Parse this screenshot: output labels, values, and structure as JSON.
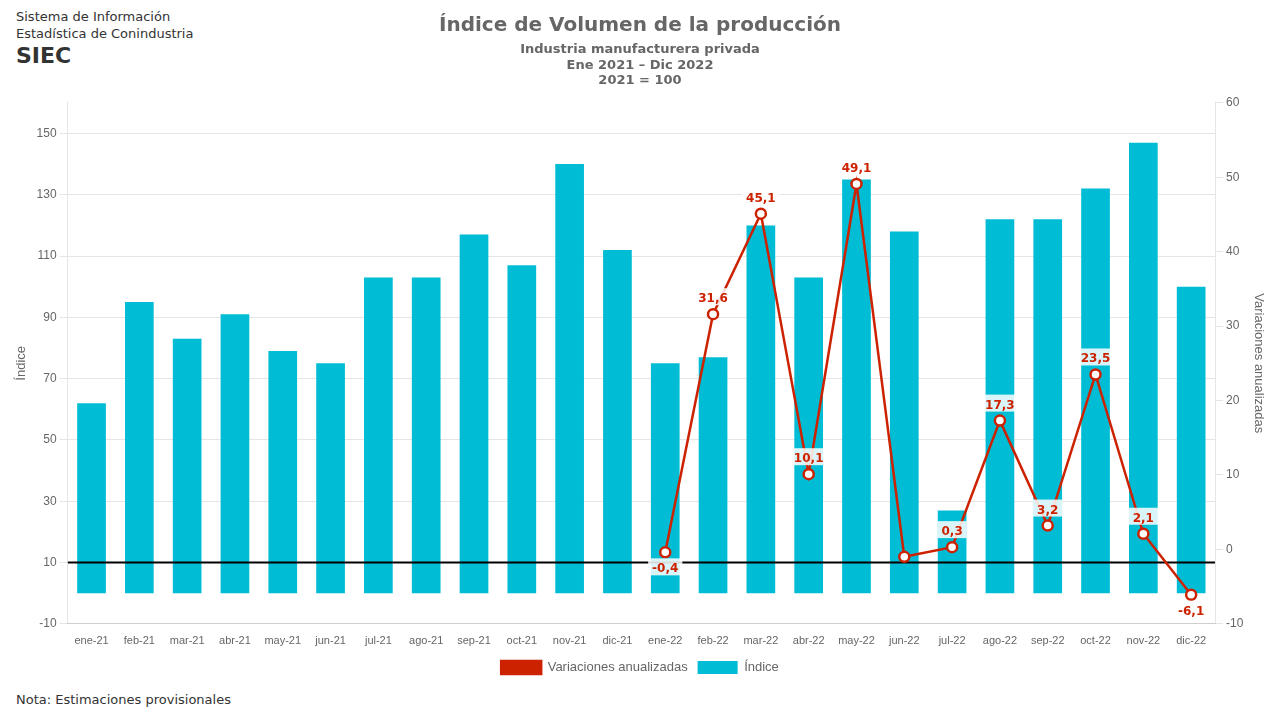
{
  "chart_data": {
    "type": "bar",
    "title": "Índice de Volumen de la producción",
    "subtitle": [
      "Industria manufacturera privada",
      "Ene 2021 – Dic 2022",
      "2021 = 100"
    ],
    "annotations": {
      "header": [
        "Sistema de Información",
        "Estadística de Conindustria",
        "SIEC"
      ],
      "note": "Nota: Estimaciones provisionales"
    },
    "categories": [
      "ene-21",
      "feb-21",
      "mar-21",
      "abr-21",
      "may-21",
      "jun-21",
      "jul-21",
      "ago-21",
      "sep-21",
      "oct-21",
      "nov-21",
      "dic-21",
      "ene-22",
      "feb-22",
      "mar-22",
      "abr-22",
      "may-22",
      "jun-22",
      "jul-22",
      "ago-22",
      "sep-22",
      "oct-22",
      "nov-22",
      "dic-22"
    ],
    "series": [
      {
        "name": "Índice",
        "type": "bar",
        "axis": "y",
        "color": "#00bcd4",
        "values": [
          62,
          95,
          83,
          91,
          79,
          75,
          103,
          103,
          117,
          107,
          140,
          112,
          75,
          77,
          120,
          103,
          135,
          118,
          27,
          122,
          122,
          132,
          147,
          100
        ]
      },
      {
        "name": "Variaciones anualizadas",
        "type": "line",
        "axis": "y2",
        "color": "#cc2200",
        "marker": "circle",
        "values": [
          null,
          null,
          null,
          null,
          null,
          null,
          null,
          null,
          null,
          null,
          null,
          null,
          -0.4,
          31.6,
          45.1,
          10.1,
          49.1,
          -1.0,
          0.3,
          17.3,
          3.2,
          23.5,
          2.1,
          -6.1
        ],
        "data_labels": true,
        "value_labels": [
          null,
          null,
          null,
          null,
          null,
          null,
          null,
          null,
          null,
          null,
          null,
          null,
          "-0,4",
          "31,6",
          "45,1",
          "10,1",
          "49,1",
          null,
          "0,3",
          "17,3",
          "3,2",
          "23,5",
          "2,1",
          "-6,1"
        ]
      }
    ],
    "ylabel": "Índice",
    "y2label": "Variaciones anualizadas",
    "ylim": [
      -10,
      160
    ],
    "yticks": [
      -10,
      10,
      30,
      50,
      70,
      90,
      110,
      130,
      150
    ],
    "y2lim": [
      -10,
      60
    ],
    "y2ticks": [
      -10,
      0,
      10,
      20,
      30,
      40,
      50,
      60
    ],
    "reference_line": {
      "axis": "y",
      "value": 10,
      "color": "#000000"
    },
    "grid": true,
    "legend": "bottom"
  }
}
